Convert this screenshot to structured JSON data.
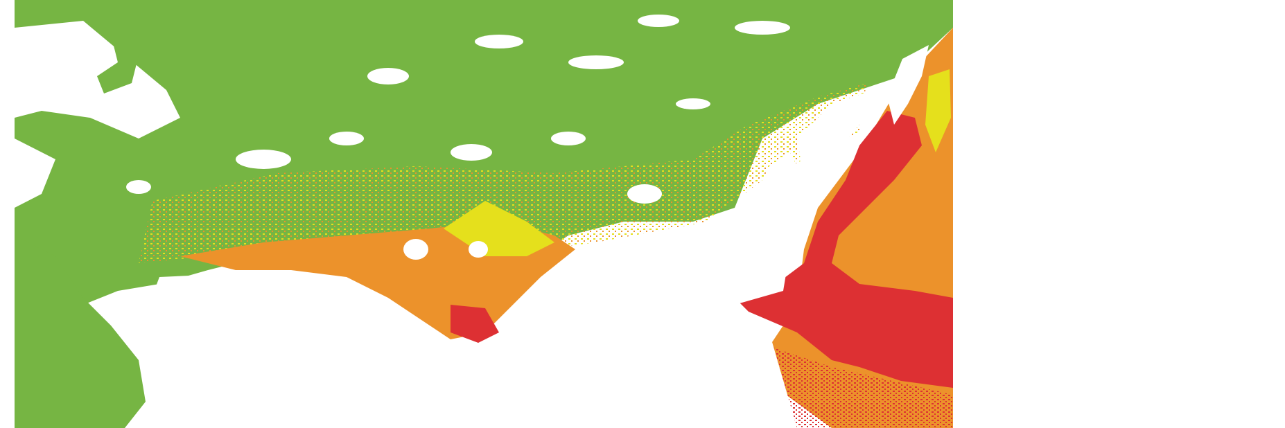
{
  "map": {
    "legend_colors": {
      "low": "#76b543",
      "moderate": "#e5e01c",
      "high": "#ec922b",
      "very_high": "#dd3033",
      "no_data": "#ffffff"
    }
  }
}
